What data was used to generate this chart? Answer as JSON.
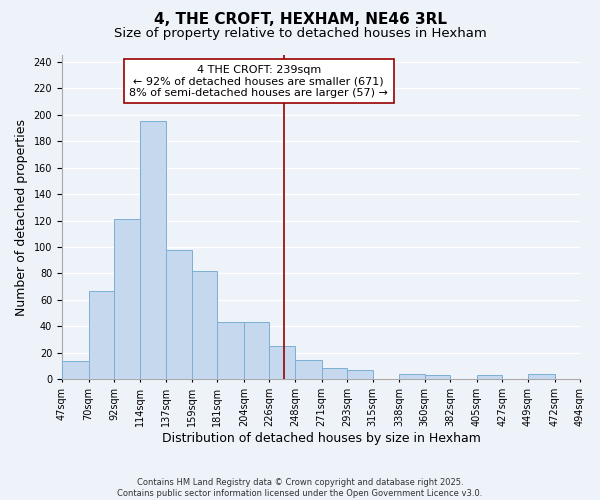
{
  "title": "4, THE CROFT, HEXHAM, NE46 3RL",
  "subtitle": "Size of property relative to detached houses in Hexham",
  "xlabel": "Distribution of detached houses by size in Hexham",
  "ylabel": "Number of detached properties",
  "bar_labels": [
    "47sqm",
    "70sqm",
    "92sqm",
    "114sqm",
    "137sqm",
    "159sqm",
    "181sqm",
    "204sqm",
    "226sqm",
    "248sqm",
    "271sqm",
    "293sqm",
    "315sqm",
    "338sqm",
    "360sqm",
    "382sqm",
    "405sqm",
    "427sqm",
    "449sqm",
    "472sqm",
    "494sqm"
  ],
  "bar_values": [
    14,
    67,
    121,
    195,
    98,
    82,
    43,
    43,
    25,
    15,
    9,
    7,
    0,
    4,
    3,
    0,
    3,
    0,
    4,
    0
  ],
  "bar_edges": [
    47,
    70,
    92,
    114,
    137,
    159,
    181,
    204,
    226,
    248,
    271,
    293,
    315,
    338,
    360,
    382,
    405,
    427,
    449,
    472,
    494
  ],
  "bar_color": "#c5d8ee",
  "bar_edgecolor": "#7bafd4",
  "vline_x": 239,
  "vline_color": "#990000",
  "ylim": [
    0,
    245
  ],
  "yticks": [
    0,
    20,
    40,
    60,
    80,
    100,
    120,
    140,
    160,
    180,
    200,
    220,
    240
  ],
  "annotation_title": "4 THE CROFT: 239sqm",
  "annotation_line1": "← 92% of detached houses are smaller (671)",
  "annotation_line2": "8% of semi-detached houses are larger (57) →",
  "background_color": "#eef2f9",
  "grid_color": "#ffffff",
  "footer1": "Contains HM Land Registry data © Crown copyright and database right 2025.",
  "footer2": "Contains public sector information licensed under the Open Government Licence v3.0.",
  "title_fontsize": 11,
  "subtitle_fontsize": 9.5,
  "axis_label_fontsize": 9,
  "tick_fontsize": 7,
  "annotation_fontsize": 8
}
